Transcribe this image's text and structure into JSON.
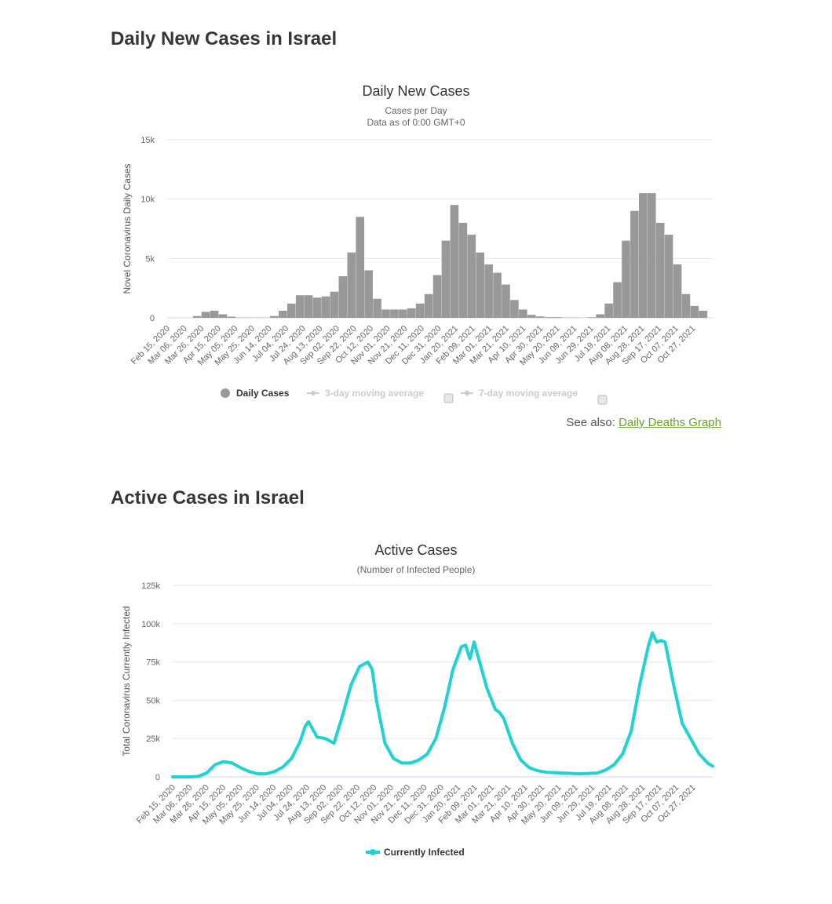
{
  "sections": [
    {
      "title": "Daily New Cases in Israel"
    },
    {
      "title": "Active Cases in Israel"
    }
  ],
  "see_also": {
    "label": "See also:",
    "link": "Daily Deaths Graph",
    "link_color": "#6aa030"
  },
  "chart_data": [
    {
      "type": "bar",
      "title": "Daily New Cases",
      "subtitle_lines": [
        "Cases per Day",
        "Data as of 0:00 GMT+0"
      ],
      "xlabel": "",
      "ylabel": "Novel Coronavirus Daily Cases",
      "ylim": [
        0,
        15000
      ],
      "yticks": [
        0,
        5000,
        10000,
        15000
      ],
      "ytick_labels": [
        "0",
        "5k",
        "10k",
        "15k"
      ],
      "grid": true,
      "legend_position": "bottom",
      "x_tick_labels": [
        "Feb 15, 2020",
        "Mar 06, 2020",
        "Mar 26, 2020",
        "Apr 15, 2020",
        "May 05, 2020",
        "May 25, 2020",
        "Jun 14, 2020",
        "Jul 04, 2020",
        "Jul 24, 2020",
        "Aug 13, 2020",
        "Sep 02, 2020",
        "Sep 22, 2020",
        "Oct 12, 2020",
        "Nov 01, 2020",
        "Nov 21, 2020",
        "Dec 11, 2020",
        "Dec 31, 2020",
        "Jan 20, 2021",
        "Feb 09, 2021",
        "Mar 01, 2021",
        "Mar 21, 2021",
        "Apr 10, 2021",
        "Apr 30, 2021",
        "May 20, 2021",
        "Jun 09, 2021",
        "Jun 29, 2021",
        "Jul 19, 2021",
        "Aug 08, 2021",
        "Aug 28, 2021",
        "Sep 17, 2021",
        "Oct 07, 2021",
        "Oct 27, 2021"
      ],
      "legend": [
        {
          "name": "Daily Cases",
          "color": "#999999",
          "enabled": true
        },
        {
          "name": "3-day moving average",
          "color": "#cccccc",
          "enabled": false
        },
        {
          "name": "7-day moving average",
          "color": "#cccccc",
          "enabled": false
        }
      ],
      "series": [
        {
          "name": "Daily Cases",
          "color": "#999999",
          "x": [
            "2020-02-15",
            "2020-03-06",
            "2020-03-16",
            "2020-03-26",
            "2020-04-05",
            "2020-04-15",
            "2020-04-25",
            "2020-05-05",
            "2020-05-25",
            "2020-06-14",
            "2020-06-24",
            "2020-07-04",
            "2020-07-14",
            "2020-07-24",
            "2020-08-03",
            "2020-08-13",
            "2020-08-23",
            "2020-09-02",
            "2020-09-12",
            "2020-09-22",
            "2020-10-02",
            "2020-10-12",
            "2020-10-22",
            "2020-11-01",
            "2020-11-11",
            "2020-11-21",
            "2020-12-01",
            "2020-12-11",
            "2020-12-21",
            "2020-12-31",
            "2021-01-10",
            "2021-01-20",
            "2021-01-30",
            "2021-02-09",
            "2021-02-19",
            "2021-03-01",
            "2021-03-11",
            "2021-03-21",
            "2021-03-31",
            "2021-04-10",
            "2021-04-20",
            "2021-04-30",
            "2021-05-20",
            "2021-06-09",
            "2021-06-19",
            "2021-06-29",
            "2021-07-09",
            "2021-07-19",
            "2021-07-29",
            "2021-08-08",
            "2021-08-18",
            "2021-08-28",
            "2021-09-07",
            "2021-09-17",
            "2021-09-27",
            "2021-10-07",
            "2021-10-17",
            "2021-10-27",
            "2021-11-06"
          ],
          "values": [
            0,
            0,
            150,
            500,
            600,
            300,
            100,
            20,
            20,
            150,
            600,
            1200,
            1900,
            1900,
            1700,
            1800,
            2200,
            3500,
            5500,
            8500,
            4000,
            1600,
            700,
            700,
            700,
            800,
            1200,
            2000,
            3600,
            6500,
            9500,
            8000,
            7000,
            5500,
            4500,
            3800,
            2800,
            1500,
            700,
            250,
            120,
            60,
            20,
            10,
            50,
            300,
            1200,
            3000,
            6500,
            9000,
            10500,
            10500,
            8000,
            7000,
            4500,
            2000,
            1000,
            600,
            400
          ]
        }
      ]
    },
    {
      "type": "line",
      "title": "Active Cases",
      "subtitle_lines": [
        "(Number of Infected People)"
      ],
      "xlabel": "",
      "ylabel": "Total Coronavirus Currently Infected",
      "ylim": [
        0,
        125000
      ],
      "yticks": [
        0,
        25000,
        50000,
        75000,
        100000,
        125000
      ],
      "ytick_labels": [
        "0",
        "25k",
        "50k",
        "75k",
        "100k",
        "125k"
      ],
      "grid": true,
      "legend_position": "bottom",
      "x_tick_labels": [
        "Feb 15, 2020",
        "Mar 06, 2020",
        "Mar 26, 2020",
        "Apr 15, 2020",
        "May 05, 2020",
        "May 25, 2020",
        "Jun 14, 2020",
        "Jul 04, 2020",
        "Jul 24, 2020",
        "Aug 13, 2020",
        "Sep 02, 2020",
        "Sep 22, 2020",
        "Oct 12, 2020",
        "Nov 01, 2020",
        "Nov 21, 2020",
        "Dec 11, 2020",
        "Dec 31, 2020",
        "Jan 20, 2021",
        "Feb 09, 2021",
        "Mar 01, 2021",
        "Mar 21, 2021",
        "Apr 10, 2021",
        "Apr 30, 2021",
        "May 20, 2021",
        "Jun 09, 2021",
        "Jun 29, 2021",
        "Jul 19, 2021",
        "Aug 08, 2021",
        "Aug 28, 2021",
        "Sep 17, 2021",
        "Oct 07, 2021",
        "Oct 27, 2021"
      ],
      "legend": [
        {
          "name": "Currently Infected",
          "color": "#1fd3d3",
          "enabled": true
        }
      ],
      "series": [
        {
          "name": "Currently Infected",
          "color": "#1fd3d3",
          "x": [
            "2020-02-15",
            "2020-03-06",
            "2020-03-16",
            "2020-03-26",
            "2020-04-05",
            "2020-04-15",
            "2020-04-25",
            "2020-05-05",
            "2020-05-15",
            "2020-05-25",
            "2020-06-04",
            "2020-06-14",
            "2020-06-24",
            "2020-07-04",
            "2020-07-14",
            "2020-07-20",
            "2020-07-24",
            "2020-08-03",
            "2020-08-13",
            "2020-08-23",
            "2020-09-02",
            "2020-09-12",
            "2020-09-22",
            "2020-10-02",
            "2020-10-07",
            "2020-10-12",
            "2020-10-22",
            "2020-11-01",
            "2020-11-11",
            "2020-11-21",
            "2020-12-01",
            "2020-12-11",
            "2020-12-21",
            "2020-12-31",
            "2021-01-10",
            "2021-01-20",
            "2021-01-25",
            "2021-01-30",
            "2021-02-04",
            "2021-02-09",
            "2021-02-19",
            "2021-03-01",
            "2021-03-06",
            "2021-03-11",
            "2021-03-21",
            "2021-03-31",
            "2021-04-10",
            "2021-04-20",
            "2021-04-30",
            "2021-05-20",
            "2021-06-09",
            "2021-06-29",
            "2021-07-09",
            "2021-07-19",
            "2021-07-29",
            "2021-08-08",
            "2021-08-18",
            "2021-08-28",
            "2021-09-02",
            "2021-09-07",
            "2021-09-12",
            "2021-09-17",
            "2021-09-27",
            "2021-10-07",
            "2021-10-17",
            "2021-10-27",
            "2021-11-06",
            "2021-11-12"
          ],
          "values": [
            0,
            0,
            300,
            2500,
            8000,
            10000,
            9000,
            6000,
            3500,
            2000,
            2000,
            3500,
            6500,
            12000,
            23000,
            33000,
            36000,
            26000,
            25000,
            22000,
            40000,
            60000,
            72000,
            75000,
            70000,
            50000,
            22000,
            12000,
            9000,
            9000,
            11000,
            15000,
            25000,
            45000,
            70000,
            85000,
            86000,
            77000,
            88000,
            78000,
            58000,
            44000,
            42000,
            38000,
            22000,
            11000,
            6000,
            4000,
            3000,
            2500,
            2000,
            2500,
            4500,
            8000,
            15000,
            30000,
            60000,
            85000,
            94000,
            88000,
            89000,
            88000,
            60000,
            35000,
            25000,
            15000,
            9000,
            7000
          ]
        }
      ]
    }
  ]
}
